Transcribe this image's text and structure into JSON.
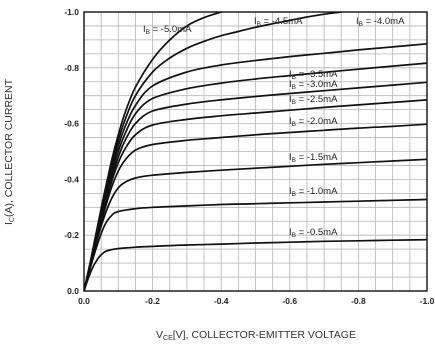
{
  "chart_data": {
    "type": "line",
    "xlabel": "V",
    "xlabel_sub": "CE",
    "xlabel_rest": "[V], COLLECTOR-EMITTER VOLTAGE",
    "ylabel": "I",
    "ylabel_sub": "C",
    "ylabel_rest": "(A), COLLECTOR CURRENT",
    "xlim": [
      0,
      -1.0
    ],
    "ylim": [
      0,
      -1.0
    ],
    "grid": true,
    "x_ticks": [
      "0.0",
      "-0.2",
      "-0.4",
      "-0.6",
      "-0.8",
      "-1.0"
    ],
    "y_ticks": [
      "0.0",
      "-0.2",
      "-0.4",
      "-0.6",
      "-0.8",
      "-1.0"
    ],
    "series": [
      {
        "name": "I B = -0.5mA",
        "label_prefix": "I",
        "label_sub": "B",
        "label_value": " = -0.5mA",
        "x": [
          0,
          -0.02,
          -0.04,
          -0.06,
          -0.08,
          -0.1,
          -0.15,
          -0.2,
          -0.3,
          -0.4,
          -0.5,
          -0.6,
          -0.7,
          -0.8,
          -0.9,
          -1.0
        ],
        "y": [
          0,
          -0.07,
          -0.115,
          -0.14,
          -0.148,
          -0.152,
          -0.157,
          -0.16,
          -0.165,
          -0.168,
          -0.172,
          -0.175,
          -0.178,
          -0.18,
          -0.182,
          -0.184
        ]
      },
      {
        "name": "I B = -1.0mA",
        "label_prefix": "I",
        "label_sub": "B",
        "label_value": " = -1.0mA",
        "x": [
          0,
          -0.02,
          -0.04,
          -0.06,
          -0.08,
          -0.1,
          -0.15,
          -0.2,
          -0.3,
          -0.4,
          -0.5,
          -0.6,
          -0.7,
          -0.8,
          -0.9,
          -1.0
        ],
        "y": [
          0,
          -0.09,
          -0.17,
          -0.235,
          -0.27,
          -0.285,
          -0.295,
          -0.3,
          -0.305,
          -0.31,
          -0.313,
          -0.316,
          -0.319,
          -0.322,
          -0.325,
          -0.328
        ]
      },
      {
        "name": "I B = -1.5mA",
        "label_prefix": "I",
        "label_sub": "B",
        "label_value": " = -1.5mA",
        "x": [
          0,
          -0.02,
          -0.04,
          -0.06,
          -0.08,
          -0.1,
          -0.12,
          -0.15,
          -0.2,
          -0.3,
          -0.4,
          -0.5,
          -0.6,
          -0.7,
          -0.8,
          -0.9,
          -1.0
        ],
        "y": [
          0,
          -0.1,
          -0.19,
          -0.27,
          -0.33,
          -0.37,
          -0.39,
          -0.405,
          -0.415,
          -0.425,
          -0.433,
          -0.44,
          -0.447,
          -0.454,
          -0.46,
          -0.466,
          -0.472
        ]
      },
      {
        "name": "I B = -2.0mA",
        "label_prefix": "I",
        "label_sub": "B",
        "label_value": " = -2.0mA",
        "x": [
          0,
          -0.02,
          -0.04,
          -0.06,
          -0.08,
          -0.1,
          -0.12,
          -0.15,
          -0.2,
          -0.3,
          -0.4,
          -0.5,
          -0.6,
          -0.7,
          -0.8,
          -0.9,
          -1.0
        ],
        "y": [
          0,
          -0.1,
          -0.2,
          -0.29,
          -0.37,
          -0.43,
          -0.47,
          -0.505,
          -0.525,
          -0.54,
          -0.55,
          -0.56,
          -0.568,
          -0.576,
          -0.584,
          -0.59,
          -0.598
        ]
      },
      {
        "name": "I B = -2.5mA",
        "label_prefix": "I",
        "label_sub": "B",
        "label_value": " = -2.5mA",
        "x": [
          0,
          -0.02,
          -0.04,
          -0.06,
          -0.08,
          -0.1,
          -0.12,
          -0.15,
          -0.2,
          -0.3,
          -0.4,
          -0.5,
          -0.6,
          -0.7,
          -0.8,
          -0.9,
          -1.0
        ],
        "y": [
          0,
          -0.105,
          -0.21,
          -0.305,
          -0.39,
          -0.46,
          -0.51,
          -0.56,
          -0.595,
          -0.615,
          -0.628,
          -0.638,
          -0.648,
          -0.658,
          -0.667,
          -0.676,
          -0.685
        ]
      },
      {
        "name": "I B = -3.0mA",
        "label_prefix": "I",
        "label_sub": "B",
        "label_value": " = -3.0mA",
        "x": [
          0,
          -0.02,
          -0.04,
          -0.06,
          -0.08,
          -0.1,
          -0.12,
          -0.15,
          -0.2,
          -0.3,
          -0.4,
          -0.5,
          -0.6,
          -0.7,
          -0.8,
          -0.9,
          -1.0
        ],
        "y": [
          0,
          -0.105,
          -0.215,
          -0.315,
          -0.405,
          -0.48,
          -0.54,
          -0.6,
          -0.645,
          -0.67,
          -0.685,
          -0.697,
          -0.708,
          -0.718,
          -0.728,
          -0.738,
          -0.748
        ]
      },
      {
        "name": "I B = -3.5mA",
        "label_prefix": "I",
        "label_sub": "B",
        "label_value": " = -3.5mA",
        "x": [
          0,
          -0.02,
          -0.04,
          -0.06,
          -0.08,
          -0.1,
          -0.12,
          -0.15,
          -0.2,
          -0.3,
          -0.4,
          -0.5,
          -0.6,
          -0.7,
          -0.8,
          -0.9,
          -1.0
        ],
        "y": [
          0,
          -0.11,
          -0.22,
          -0.325,
          -0.42,
          -0.5,
          -0.565,
          -0.635,
          -0.69,
          -0.725,
          -0.745,
          -0.76,
          -0.772,
          -0.784,
          -0.795,
          -0.806,
          -0.817
        ]
      },
      {
        "name": "I B = -4.0mA",
        "label_prefix": "I",
        "label_sub": "B",
        "label_value": " = -4.0mA",
        "x": [
          0,
          -0.02,
          -0.04,
          -0.06,
          -0.08,
          -0.1,
          -0.12,
          -0.15,
          -0.2,
          -0.3,
          -0.4,
          -0.5,
          -0.6,
          -0.7,
          -0.8,
          -0.9,
          -1.0
        ],
        "y": [
          0,
          -0.11,
          -0.225,
          -0.335,
          -0.435,
          -0.52,
          -0.59,
          -0.665,
          -0.735,
          -0.785,
          -0.81,
          -0.826,
          -0.84,
          -0.852,
          -0.864,
          -0.875,
          -0.886
        ]
      },
      {
        "name": "I B = -4.5mA",
        "label_prefix": "I",
        "label_sub": "B",
        "label_value": " = -4.5mA",
        "x": [
          0,
          -0.02,
          -0.04,
          -0.06,
          -0.08,
          -0.1,
          -0.12,
          -0.15,
          -0.2,
          -0.25,
          -0.3,
          -0.35,
          -0.4,
          -0.45,
          -0.5,
          -0.55,
          -0.6,
          -0.65,
          -0.7,
          -0.75
        ],
        "y": [
          0,
          -0.11,
          -0.23,
          -0.345,
          -0.45,
          -0.54,
          -0.615,
          -0.7,
          -0.785,
          -0.835,
          -0.87,
          -0.895,
          -0.915,
          -0.93,
          -0.945,
          -0.958,
          -0.97,
          -0.982,
          -0.992,
          -1.0
        ]
      },
      {
        "name": "I B = -5.0mA",
        "label_prefix": "I",
        "label_sub": "B",
        "label_value": " = -5.0mA",
        "x": [
          0,
          -0.02,
          -0.04,
          -0.06,
          -0.08,
          -0.1,
          -0.12,
          -0.15,
          -0.2,
          -0.25,
          -0.3,
          -0.35,
          -0.4
        ],
        "y": [
          0,
          -0.115,
          -0.235,
          -0.355,
          -0.465,
          -0.56,
          -0.64,
          -0.73,
          -0.83,
          -0.9,
          -0.95,
          -0.98,
          -1.0
        ]
      }
    ]
  }
}
